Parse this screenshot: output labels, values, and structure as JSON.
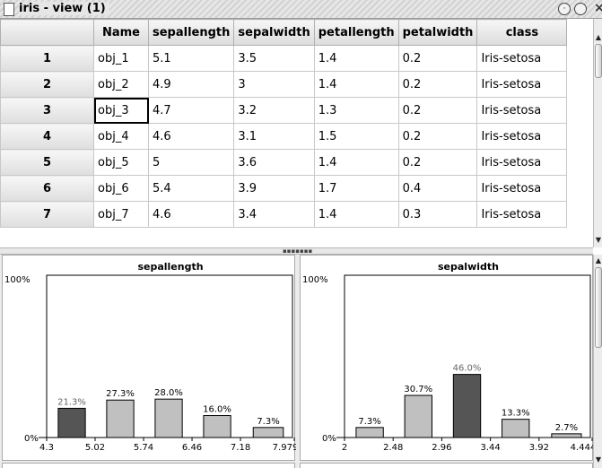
{
  "window": {
    "title": "iris - view (1)",
    "close_glyph": "×"
  },
  "table": {
    "columns": [
      "Name",
      "sepallength",
      "sepalwidth",
      "petallength",
      "petalwidth",
      "class"
    ],
    "rows": [
      {
        "index": "1",
        "cells": [
          "obj_1",
          "5.1",
          "3.5",
          "1.4",
          "0.2",
          "Iris-setosa"
        ]
      },
      {
        "index": "2",
        "cells": [
          "obj_2",
          "4.9",
          "3",
          "1.4",
          "0.2",
          "Iris-setosa"
        ]
      },
      {
        "index": "3",
        "cells": [
          "obj_3",
          "4.7",
          "3.2",
          "1.3",
          "0.2",
          "Iris-setosa"
        ]
      },
      {
        "index": "4",
        "cells": [
          "obj_4",
          "4.6",
          "3.1",
          "1.5",
          "0.2",
          "Iris-setosa"
        ]
      },
      {
        "index": "5",
        "cells": [
          "obj_5",
          "5",
          "3.6",
          "1.4",
          "0.2",
          "Iris-setosa"
        ]
      },
      {
        "index": "6",
        "cells": [
          "obj_6",
          "5.4",
          "3.9",
          "1.7",
          "0.4",
          "Iris-setosa"
        ]
      },
      {
        "index": "7",
        "cells": [
          "obj_7",
          "4.6",
          "3.4",
          "1.4",
          "0.3",
          "Iris-setosa"
        ]
      }
    ],
    "selected_cell": {
      "row": 2,
      "col": 0
    }
  },
  "colors": {
    "bar_light": "#c0c0c0",
    "bar_dark": "#555555",
    "bar_stroke": "#000000"
  },
  "chart_data": [
    {
      "type": "bar",
      "title": "sepallength",
      "ymax_label": "100%",
      "ymin_label": "0%",
      "ylim": [
        0,
        100
      ],
      "bin_edges": [
        4.3,
        5.02,
        5.74,
        6.46,
        7.18,
        7.979
      ],
      "tick_labels": [
        "4.3",
        "5.02",
        "5.74",
        "6.46",
        "7.18",
        "7.979"
      ],
      "values": [
        21.3,
        27.3,
        28.0,
        16.0,
        7.3
      ],
      "value_labels": [
        "21.3%",
        "27.3%",
        "28.0%",
        "16.0%",
        "7.3%"
      ],
      "highlight_index": 0
    },
    {
      "type": "bar",
      "title": "sepalwidth",
      "ymax_label": "100%",
      "ymin_label": "0%",
      "ylim": [
        0,
        100
      ],
      "bin_edges": [
        2,
        2.48,
        2.96,
        3.44,
        3.92,
        4.444
      ],
      "tick_labels": [
        "2",
        "2.48",
        "2.96",
        "3.44",
        "3.92",
        "4.444"
      ],
      "values": [
        7.3,
        30.7,
        46.0,
        13.3,
        2.7
      ],
      "value_labels": [
        "7.3%",
        "30.7%",
        "46.0%",
        "13.3%",
        "2.7%"
      ],
      "highlight_index": 2
    }
  ]
}
